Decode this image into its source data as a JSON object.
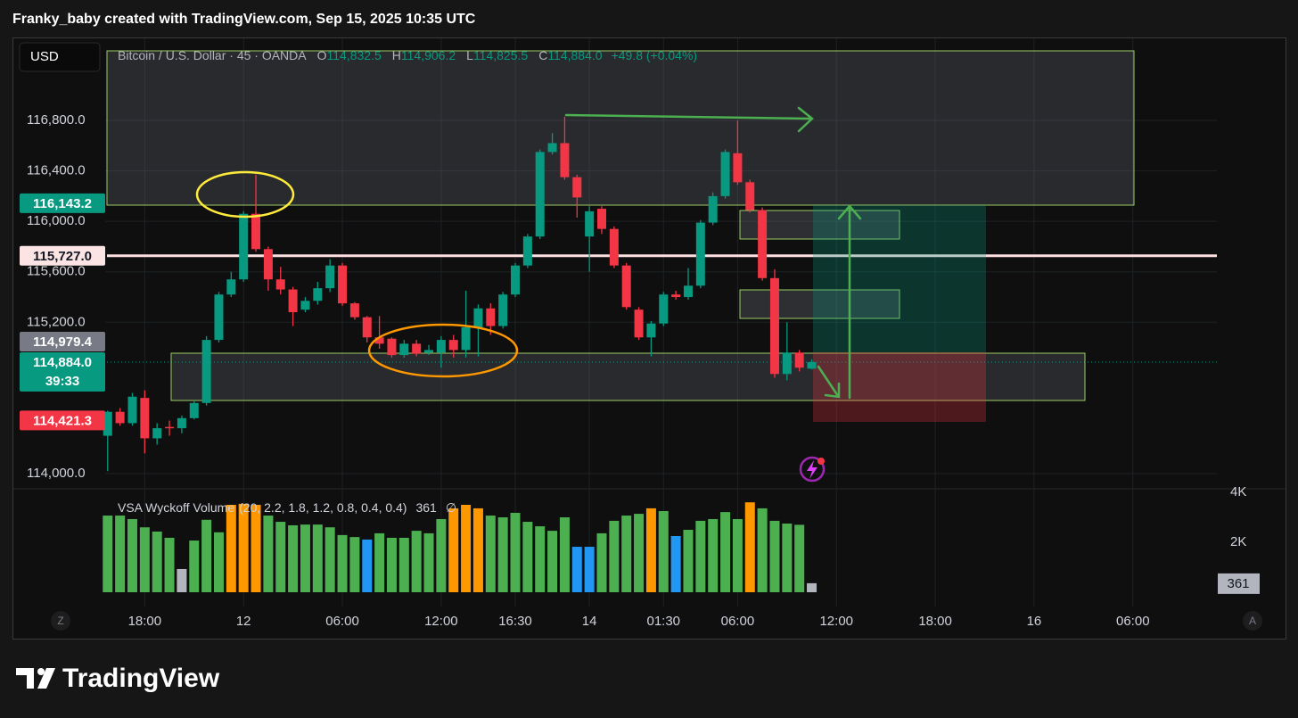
{
  "header": {
    "text": "Franky_baby created with TradingView.com, Sep 15, 2025 10:35 UTC"
  },
  "toolbar": {
    "currency": "USD"
  },
  "footer": {
    "brand": "TradingView"
  },
  "axis_buttons": [
    "Z",
    "A"
  ],
  "chart_data": {
    "type": "candlestick",
    "title": "Bitcoin / U.S. Dollar · 45 · OANDA",
    "legend": [
      {
        "label": "O",
        "value": "114,832.5"
      },
      {
        "label": "H",
        "value": "114,906.2"
      },
      {
        "label": "L",
        "value": "114,825.5"
      },
      {
        "label": "C",
        "value": "114,884.0"
      }
    ],
    "change": "+49.8 (+0.04%)",
    "up_color": "#089981",
    "down_color": "#f23645",
    "open": [
      114300,
      114490,
      114400,
      114600,
      114280,
      114370,
      114360,
      114440,
      114560,
      115060,
      115420,
      115540,
      116060,
      115780,
      115540,
      115460,
      115300,
      115370,
      115470,
      115650,
      115350,
      115240,
      115080,
      115070,
      114940,
      115030,
      114960,
      114960,
      115060,
      114980,
      115160,
      115310,
      115170,
      115420,
      115650,
      115880,
      116550,
      116620,
      116350,
      115880,
      116100,
      115940,
      115650,
      115300,
      115080,
      115190,
      115420,
      115400,
      115490,
      115990,
      116200,
      116540,
      116310,
      116090,
      115550,
      114790,
      114960,
      114832.5
    ],
    "high": [
      114500,
      114520,
      114640,
      114660,
      114400,
      114420,
      114460,
      114580,
      115090,
      115440,
      115600,
      116080,
      116370,
      115800,
      115640,
      115480,
      115400,
      115520,
      115700,
      115670,
      115360,
      115250,
      115250,
      115080,
      115060,
      115060,
      115020,
      115090,
      115100,
      115450,
      115340,
      115350,
      115440,
      115670,
      115900,
      116570,
      116700,
      116830,
      116370,
      116120,
      116120,
      115960,
      115670,
      115320,
      115210,
      115440,
      115450,
      115630,
      116010,
      116230,
      116570,
      116800,
      116330,
      116110,
      115620,
      115200,
      114980,
      114906.2
    ],
    "low": [
      114020,
      114380,
      114380,
      114160,
      114230,
      114300,
      114320,
      114430,
      114540,
      115040,
      115400,
      115520,
      115760,
      115450,
      115420,
      115170,
      115280,
      115340,
      115440,
      115330,
      115220,
      115040,
      114990,
      114920,
      114920,
      114930,
      114940,
      114840,
      114920,
      114920,
      114930,
      115100,
      115150,
      115400,
      115630,
      115860,
      116530,
      116330,
      116030,
      115600,
      115900,
      115630,
      115300,
      115060,
      114930,
      115170,
      115380,
      115380,
      115470,
      115970,
      116180,
      116290,
      116070,
      115530,
      114760,
      114740,
      114810,
      114825.5
    ],
    "close": [
      114490,
      114400,
      114610,
      114280,
      114360,
      114360,
      114440,
      114560,
      115060,
      115420,
      115540,
      116060,
      115780,
      115540,
      115460,
      115280,
      115370,
      115470,
      115650,
      115350,
      115240,
      115080,
      115030,
      114940,
      115030,
      114950,
      114980,
      115060,
      114980,
      115160,
      115310,
      115170,
      115420,
      115650,
      115880,
      116550,
      116620,
      116350,
      116190,
      116080,
      115940,
      115650,
      115320,
      115080,
      115190,
      115420,
      115400,
      115490,
      115990,
      116200,
      116550,
      116310,
      116090,
      115550,
      114790,
      114960,
      114840,
      114884.0
    ],
    "xlim": [
      -0.2,
      89.8
    ],
    "xticks": [
      {
        "value": 3,
        "label": "18:00"
      },
      {
        "value": 11,
        "label": "12"
      },
      {
        "value": 19,
        "label": "06:00"
      },
      {
        "value": 27,
        "label": "12:00"
      },
      {
        "value": 33,
        "label": "16:30"
      },
      {
        "value": 39,
        "label": "14"
      },
      {
        "value": 45,
        "label": "01:30"
      },
      {
        "value": 51,
        "label": "06:00"
      },
      {
        "value": 59,
        "label": "12:00"
      },
      {
        "value": 67,
        "label": "18:00"
      },
      {
        "value": 75,
        "label": "16"
      },
      {
        "value": 83,
        "label": "06:00"
      }
    ],
    "ylim": [
      113901,
      117458
    ],
    "yticks": [
      {
        "value": 114000,
        "label": "114,000.0"
      },
      {
        "value": 115200,
        "label": "115,200.0"
      },
      {
        "value": 115600,
        "label": "115,600.0"
      },
      {
        "value": 116000,
        "label": "116,000.0"
      },
      {
        "value": 116400,
        "label": "116,400.0"
      },
      {
        "value": 116800,
        "label": "116,800.0"
      }
    ],
    "grid": true,
    "price_labels": [
      {
        "value": 116143.2,
        "label": "116,143.2",
        "color": "#089981"
      },
      {
        "value": 115727.0,
        "label": "115,727.0",
        "color": "#fde4e4"
      },
      {
        "value": 114979.4,
        "label": "114,979.4",
        "color": "#787b86"
      },
      {
        "value": 114884.0,
        "label": "114,884.0",
        "color": "#089981",
        "countdown": "39:33"
      },
      {
        "value": 114421.3,
        "label": "114,421.3",
        "color": "#f23645"
      }
    ],
    "volume": {
      "title": "VSA Wyckoff Volume",
      "params": "(20, 2.2, 1.8, 1.2, 0.8, 0.4, 0.4)",
      "status_symbol": "∅",
      "values": [
        3070,
        3070,
        2930,
        2600,
        2430,
        2180,
        930,
        2070,
        2900,
        2400,
        3500,
        3540,
        3500,
        3070,
        2820,
        2680,
        2710,
        2710,
        2600,
        2290,
        2210,
        2110,
        2360,
        2180,
        2180,
        2460,
        2360,
        2930,
        3360,
        3500,
        3360,
        3070,
        3000,
        3180,
        2820,
        2640,
        2460,
        3000,
        1820,
        1820,
        2360,
        2860,
        3070,
        3140,
        3360,
        3250,
        2250,
        2500,
        2860,
        2930,
        3210,
        2930,
        3600,
        3360,
        2860,
        2750,
        2700,
        361
      ],
      "colors": [
        "#4caf50",
        "#4caf50",
        "#4caf50",
        "#4caf50",
        "#4caf50",
        "#4caf50",
        "#b2b5be",
        "#4caf50",
        "#4caf50",
        "#4caf50",
        "#ff9800",
        "#ff9800",
        "#ff9800",
        "#4caf50",
        "#4caf50",
        "#4caf50",
        "#4caf50",
        "#4caf50",
        "#4caf50",
        "#4caf50",
        "#4caf50",
        "#2196f3",
        "#4caf50",
        "#4caf50",
        "#4caf50",
        "#4caf50",
        "#4caf50",
        "#4caf50",
        "#ff9800",
        "#ff9800",
        "#ff9800",
        "#4caf50",
        "#4caf50",
        "#4caf50",
        "#4caf50",
        "#4caf50",
        "#4caf50",
        "#4caf50",
        "#2196f3",
        "#2196f3",
        "#4caf50",
        "#4caf50",
        "#4caf50",
        "#4caf50",
        "#ff9800",
        "#4caf50",
        "#2196f3",
        "#4caf50",
        "#4caf50",
        "#4caf50",
        "#4caf50",
        "#4caf50",
        "#ff9800",
        "#4caf50",
        "#4caf50",
        "#4caf50",
        "#4caf50",
        "#b2b5be"
      ],
      "ylim": [
        0,
        4000
      ],
      "yticks": [
        {
          "value": 2000,
          "label": "2K"
        },
        {
          "value": 4000,
          "label": "4K"
        }
      ]
    }
  }
}
